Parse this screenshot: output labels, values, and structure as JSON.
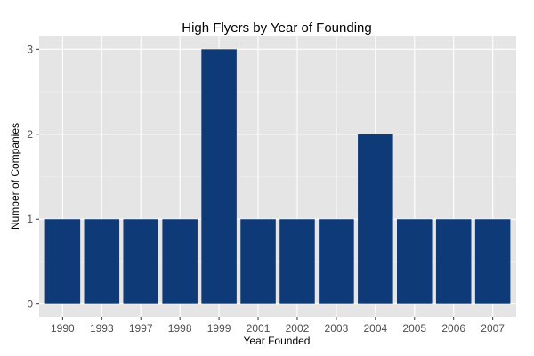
{
  "chart_data": {
    "type": "bar",
    "title": "High Flyers by Year of Founding",
    "xlabel": "Year Founded",
    "ylabel": "Number of Companies",
    "categories": [
      "1990",
      "1993",
      "1997",
      "1998",
      "1999",
      "2001",
      "2002",
      "2003",
      "2004",
      "2005",
      "2006",
      "2007"
    ],
    "values": [
      1,
      1,
      1,
      1,
      3,
      1,
      1,
      1,
      2,
      1,
      1,
      1
    ],
    "ylim": [
      -0.15,
      3.15
    ],
    "yticks": [
      0,
      1,
      2,
      3
    ],
    "grid": true,
    "legend": "none",
    "colors": {
      "bar": "#0F3A78",
      "panel": "#E5E5E5",
      "gridline": "#FFFFFF"
    }
  }
}
